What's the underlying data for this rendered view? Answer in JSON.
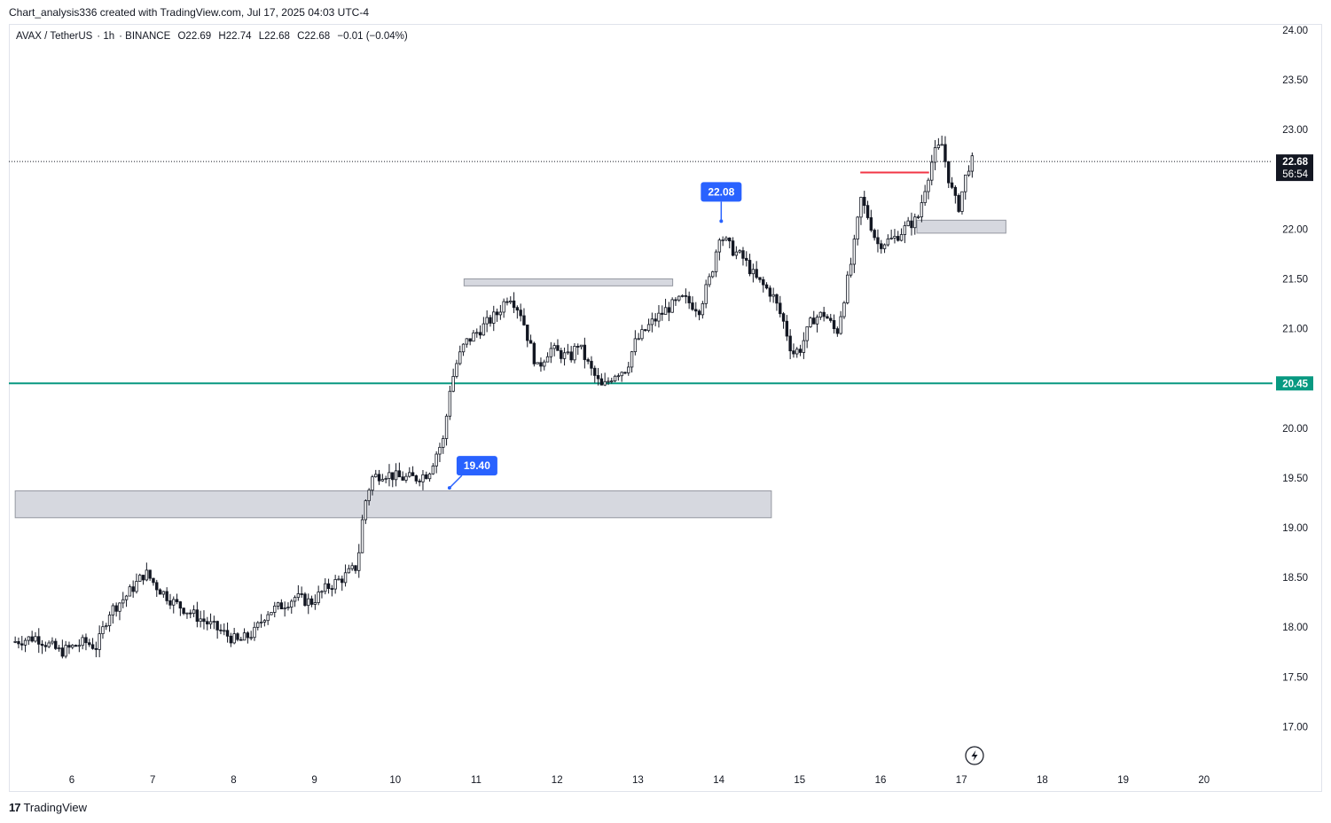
{
  "caption": "Chart_analysis336 created with TradingView.com, Jul 17, 2025 04:03 UTC-4",
  "symbol": {
    "pair": "AVAX / TetherUS",
    "interval": "1h",
    "exchange": "BINANCE",
    "open": "O22.69",
    "high": "H22.74",
    "low": "L22.68",
    "close": "C22.68",
    "change": "−0.01 (−0.04%)"
  },
  "chart_data": {
    "type": "candlestick",
    "x_labels": [
      "6",
      "7",
      "8",
      "9",
      "10",
      "11",
      "12",
      "13",
      "14",
      "15",
      "16",
      "17",
      "18",
      "19",
      "20"
    ],
    "y_labels": [
      "24.00",
      "23.50",
      "23.00",
      "22.00",
      "21.50",
      "21.00",
      "20.00",
      "19.50",
      "19.00",
      "18.50",
      "18.00",
      "17.50",
      "17.00"
    ],
    "ylim": [
      16.6,
      24.1
    ],
    "last_price": {
      "value": 22.68,
      "label": "22.68",
      "countdown": "56:54"
    },
    "support_line": {
      "value": 20.45,
      "label": "20.45",
      "color": "#089981"
    },
    "callouts": [
      {
        "label": "19.40",
        "day": 10.67,
        "value": 19.4
      },
      {
        "label": "22.08",
        "day": 14.03,
        "value": 22.08
      }
    ],
    "zones": [
      {
        "day_start": 5.3,
        "day_end": 14.65,
        "low": 19.1,
        "high": 19.37
      },
      {
        "day_start": 10.85,
        "day_end": 13.43,
        "low": 21.43,
        "high": 21.5
      },
      {
        "day_start": 16.45,
        "day_end": 17.55,
        "low": 21.96,
        "high": 22.09
      }
    ],
    "resistance": {
      "day_start": 15.75,
      "day_end": 16.6,
      "value": 22.57,
      "color": "#f23645"
    },
    "price_path": [
      [
        5.3,
        17.85
      ],
      [
        5.6,
        17.9
      ],
      [
        5.9,
        17.75
      ],
      [
        6.2,
        17.85
      ],
      [
        6.35,
        17.8
      ],
      [
        6.5,
        18.15
      ],
      [
        6.7,
        18.3
      ],
      [
        6.85,
        18.45
      ],
      [
        6.95,
        18.55
      ],
      [
        7.1,
        18.4
      ],
      [
        7.3,
        18.25
      ],
      [
        7.5,
        18.15
      ],
      [
        7.7,
        18.05
      ],
      [
        7.9,
        17.95
      ],
      [
        8.1,
        17.85
      ],
      [
        8.3,
        17.95
      ],
      [
        8.45,
        18.15
      ],
      [
        8.6,
        18.2
      ],
      [
        8.8,
        18.3
      ],
      [
        9.0,
        18.25
      ],
      [
        9.2,
        18.4
      ],
      [
        9.4,
        18.5
      ],
      [
        9.55,
        18.6
      ],
      [
        9.6,
        18.8
      ],
      [
        9.65,
        19.2
      ],
      [
        9.75,
        19.5
      ],
      [
        9.9,
        19.55
      ],
      [
        10.1,
        19.5
      ],
      [
        10.3,
        19.5
      ],
      [
        10.45,
        19.55
      ],
      [
        10.55,
        19.75
      ],
      [
        10.65,
        19.9
      ],
      [
        10.7,
        20.35
      ],
      [
        10.8,
        20.65
      ],
      [
        10.9,
        20.85
      ],
      [
        11.1,
        21.0
      ],
      [
        11.3,
        21.15
      ],
      [
        11.45,
        21.35
      ],
      [
        11.6,
        21.15
      ],
      [
        11.7,
        20.85
      ],
      [
        11.8,
        20.6
      ],
      [
        11.95,
        20.8
      ],
      [
        12.2,
        20.7
      ],
      [
        12.3,
        20.85
      ],
      [
        12.45,
        20.6
      ],
      [
        12.6,
        20.4
      ],
      [
        12.75,
        20.55
      ],
      [
        12.9,
        20.6
      ],
      [
        13.0,
        20.85
      ],
      [
        13.2,
        21.05
      ],
      [
        13.4,
        21.2
      ],
      [
        13.6,
        21.3
      ],
      [
        13.8,
        21.2
      ],
      [
        13.95,
        21.55
      ],
      [
        14.05,
        21.95
      ],
      [
        14.2,
        21.8
      ],
      [
        14.35,
        21.7
      ],
      [
        14.5,
        21.5
      ],
      [
        14.7,
        21.35
      ],
      [
        14.85,
        21.05
      ],
      [
        14.95,
        20.75
      ],
      [
        15.05,
        20.8
      ],
      [
        15.2,
        21.1
      ],
      [
        15.35,
        21.15
      ],
      [
        15.5,
        20.95
      ],
      [
        15.6,
        21.35
      ],
      [
        15.7,
        21.75
      ],
      [
        15.8,
        22.3
      ],
      [
        15.9,
        22.1
      ],
      [
        16.0,
        21.85
      ],
      [
        16.2,
        21.9
      ],
      [
        16.4,
        22.05
      ],
      [
        16.5,
        22.1
      ],
      [
        16.6,
        22.45
      ],
      [
        16.7,
        22.75
      ],
      [
        16.8,
        22.85
      ],
      [
        16.9,
        22.45
      ],
      [
        17.0,
        22.2
      ],
      [
        17.1,
        22.55
      ],
      [
        17.15,
        22.68
      ]
    ]
  }
}
